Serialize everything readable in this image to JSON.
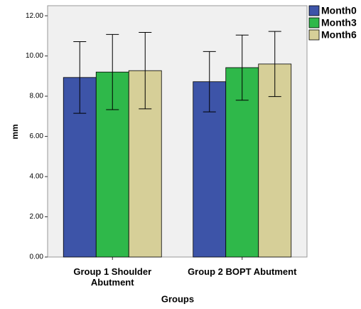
{
  "chart_data": {
    "type": "bar",
    "x_label": "Groups",
    "y_label": "mm",
    "categories": [
      "Group 1 Shoulder Abutment",
      "Group 2 BOPT Abutment"
    ],
    "series": [
      {
        "name": "Month0",
        "color": "#3d54a8",
        "values": [
          8.93,
          8.72
        ],
        "errors": [
          1.78,
          1.5
        ]
      },
      {
        "name": "Month3",
        "color": "#2fb84a",
        "values": [
          9.2,
          9.42
        ],
        "errors": [
          1.87,
          1.62
        ]
      },
      {
        "name": "Month6",
        "color": "#d6cf98",
        "values": [
          9.27,
          9.6
        ],
        "errors": [
          1.9,
          1.62
        ]
      }
    ],
    "ylim": [
      0,
      12.5
    ],
    "yticks": [
      {
        "value": 0,
        "label": "0.00"
      },
      {
        "value": 2,
        "label": "2.00"
      },
      {
        "value": 4,
        "label": "4.00"
      },
      {
        "value": 6,
        "label": "6.00"
      },
      {
        "value": 8,
        "label": "8.00"
      },
      {
        "value": 10,
        "label": "10.00"
      },
      {
        "value": 12,
        "label": "12.00"
      }
    ],
    "grid": false,
    "legend": "top-right"
  }
}
